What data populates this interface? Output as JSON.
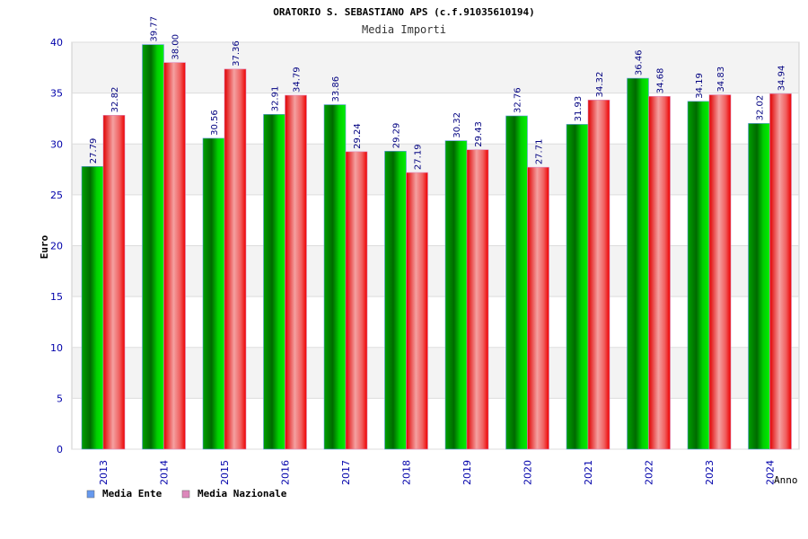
{
  "chart_data": {
    "type": "bar",
    "title": "ORATORIO S. SEBASTIANO APS (c.f.91035610194)",
    "subtitle": "Media Importi",
    "xlabel": "Anno",
    "ylabel": "Euro",
    "ylim": [
      0,
      40
    ],
    "yticks": [
      0,
      5,
      10,
      15,
      20,
      25,
      30,
      35,
      40
    ],
    "grid": true,
    "legend_position": "bottom-left",
    "categories": [
      "2013",
      "2014",
      "2015",
      "2016",
      "2017",
      "2018",
      "2019",
      "2020",
      "2021",
      "2022",
      "2023",
      "2024"
    ],
    "series": [
      {
        "name": "Media Ente",
        "color": "#00aa00",
        "legend_color": "#6699ee",
        "values": [
          27.79,
          39.77,
          30.56,
          32.91,
          33.86,
          29.29,
          30.32,
          32.76,
          31.93,
          36.46,
          34.19,
          32.02
        ],
        "labels": [
          "27.79",
          "39.77",
          "30.56",
          "32.91",
          "33.86",
          "29.29",
          "30.32",
          "32.76",
          "31.93",
          "36.46",
          "34.19",
          "32.02"
        ]
      },
      {
        "name": "Media Nazionale",
        "color": "#ee0000",
        "legend_color": "#dd88bb",
        "values": [
          32.82,
          38.0,
          37.36,
          34.79,
          29.24,
          27.19,
          29.43,
          27.71,
          34.32,
          34.68,
          34.83,
          34.94
        ],
        "labels": [
          "32.82",
          "38.00",
          "37.36",
          "34.79",
          "29.24",
          "27.19",
          "29.43",
          "27.71",
          "34.32",
          "34.68",
          "34.83",
          "34.94"
        ]
      }
    ]
  }
}
